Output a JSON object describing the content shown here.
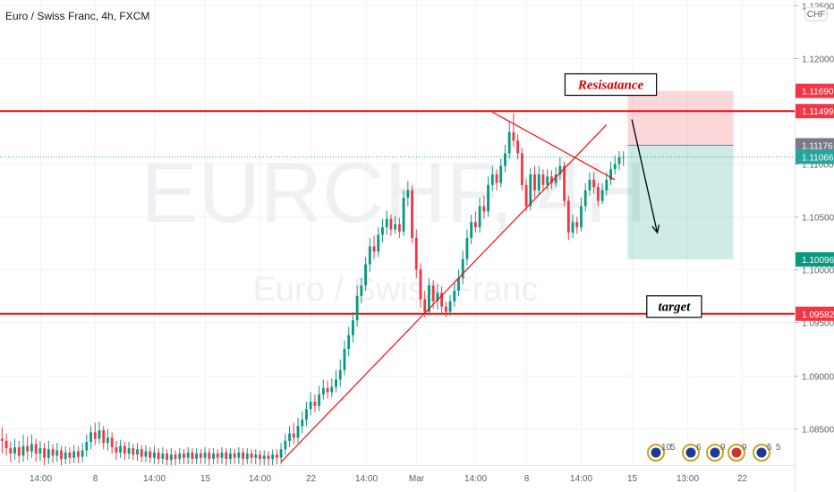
{
  "chart_data": {
    "type": "candlestick",
    "title": "Euro / Swiss Franc, 4h, FXCM",
    "watermark": {
      "symbol": "EURCHF, 4H",
      "name": "Euro / Swiss Franc"
    },
    "currency": "CHF",
    "ylim": [
      1.0815,
      1.1255
    ],
    "y_ticks": [
      "1.12500",
      "1.12000",
      "1.11500",
      "1.11000",
      "1.10500",
      "1.10000",
      "1.09500",
      "1.09000",
      "1.08500"
    ],
    "y_tick_values": [
      1.125,
      1.12,
      1.115,
      1.11,
      1.105,
      1.1,
      1.095,
      1.09,
      1.085
    ],
    "x_ticks": [
      "14:00",
      "8",
      "14:00",
      "15",
      "14:00",
      "22",
      "14:00",
      "Mar",
      "14:00",
      "8",
      "14:00",
      "15",
      "13:00",
      "22"
    ],
    "x_tick_bars": [
      9,
      22,
      36,
      48,
      61,
      73,
      86,
      98,
      112,
      124,
      137,
      149,
      162,
      175
    ],
    "bar_count": 188,
    "last_bar": 148,
    "price_labels": [
      {
        "text": "1.11690",
        "value": 1.1169,
        "color": "#f23645"
      },
      {
        "text": "1.11499",
        "value": 1.11499,
        "color": "#f23645"
      },
      {
        "text": "1.11176",
        "value": 1.11176,
        "color": "#787b86"
      },
      {
        "text": "1.11066",
        "value": 1.11066,
        "color": "#26a69a"
      },
      {
        "text": "1.10096",
        "value": 1.10096,
        "color": "#089981"
      },
      {
        "text": "1.09582",
        "value": 1.09582,
        "color": "#f23645"
      }
    ],
    "horizontal_lines": [
      {
        "value": 1.11499,
        "color": "#f20d0d"
      },
      {
        "value": 1.09582,
        "color": "#f20d0d"
      }
    ],
    "trend_lines": [
      {
        "from": [
          66,
          1.0818
        ],
        "to": [
          143,
          1.1137
        ],
        "color": "#f20d0d"
      },
      {
        "from": [
          116,
          1.1149
        ],
        "to": [
          145,
          1.1085
        ],
        "color": "#f20d0d"
      }
    ],
    "position_box": {
      "start_bar": 148,
      "end_bar": 173,
      "entry": 1.11176,
      "stop": 1.1169,
      "target": 1.10096
    },
    "arrow": {
      "from": [
        149,
        1.1142
      ],
      "to": [
        155,
        1.1035
      ]
    },
    "annotations": [
      {
        "text": "Resisatance",
        "bar": 144,
        "value": 1.1175,
        "color": "#d50000"
      },
      {
        "text": "target",
        "bar": 159,
        "value": 1.0965,
        "color": "#000000"
      }
    ],
    "event_badges": [
      "10",
      "5",
      "6",
      "9",
      "9",
      "5",
      "5"
    ],
    "candles": [
      [
        1.084,
        1.0838,
        1.0851,
        1.0826
      ],
      [
        1.0838,
        1.0831,
        1.0845,
        1.0824
      ],
      [
        1.0831,
        1.0826,
        1.0837,
        1.0818
      ],
      [
        1.0826,
        1.0832,
        1.084,
        1.082
      ],
      [
        1.0832,
        1.0824,
        1.0838,
        1.0817
      ],
      [
        1.0824,
        1.0833,
        1.0844,
        1.0818
      ],
      [
        1.0833,
        1.0828,
        1.0842,
        1.082
      ],
      [
        1.0828,
        1.0835,
        1.0844,
        1.0822
      ],
      [
        1.0835,
        1.0826,
        1.084,
        1.0818
      ],
      [
        1.0826,
        1.0831,
        1.0838,
        1.0819
      ],
      [
        1.0831,
        1.0822,
        1.0836,
        1.0815
      ],
      [
        1.0822,
        1.083,
        1.0838,
        1.0816
      ],
      [
        1.083,
        1.0824,
        1.0835,
        1.0817
      ],
      [
        1.0824,
        1.0829,
        1.0836,
        1.0818
      ],
      [
        1.0829,
        1.0821,
        1.0833,
        1.0815
      ],
      [
        1.0821,
        1.0827,
        1.0833,
        1.0816
      ],
      [
        1.0827,
        1.0822,
        1.0832,
        1.0816
      ],
      [
        1.0822,
        1.0828,
        1.0834,
        1.0817
      ],
      [
        1.0828,
        1.0823,
        1.0833,
        1.0817
      ],
      [
        1.0823,
        1.0829,
        1.0836,
        1.0818
      ],
      [
        1.0829,
        1.0837,
        1.0844,
        1.0823
      ],
      [
        1.0837,
        1.0846,
        1.0852,
        1.083
      ],
      [
        1.0846,
        1.084,
        1.0855,
        1.0834
      ],
      [
        1.084,
        1.0848,
        1.0856,
        1.0835
      ],
      [
        1.0848,
        1.0836,
        1.0852,
        1.083
      ],
      [
        1.0836,
        1.0841,
        1.0849,
        1.0829
      ],
      [
        1.0841,
        1.0832,
        1.0846,
        1.0826
      ],
      [
        1.0832,
        1.0827,
        1.0838,
        1.082
      ],
      [
        1.0827,
        1.0833,
        1.0839,
        1.0822
      ],
      [
        1.0833,
        1.0826,
        1.0837,
        1.082
      ],
      [
        1.0826,
        1.0831,
        1.0837,
        1.0821
      ],
      [
        1.0831,
        1.0825,
        1.0835,
        1.082
      ],
      [
        1.0825,
        1.083,
        1.0836,
        1.0819
      ],
      [
        1.083,
        1.0823,
        1.0834,
        1.0818
      ],
      [
        1.0823,
        1.0828,
        1.0834,
        1.0818
      ],
      [
        1.0828,
        1.0822,
        1.0832,
        1.0817
      ],
      [
        1.0822,
        1.0827,
        1.0833,
        1.0816
      ],
      [
        1.0827,
        1.0821,
        1.0831,
        1.0816
      ],
      [
        1.0821,
        1.0826,
        1.0832,
        1.0816
      ],
      [
        1.0826,
        1.082,
        1.083,
        1.0815
      ],
      [
        1.082,
        1.0825,
        1.0831,
        1.0815
      ],
      [
        1.0825,
        1.0821,
        1.0829,
        1.0815
      ],
      [
        1.0821,
        1.0826,
        1.0831,
        1.0816
      ],
      [
        1.0826,
        1.0822,
        1.083,
        1.0816
      ],
      [
        1.0822,
        1.0827,
        1.0832,
        1.0816
      ],
      [
        1.0827,
        1.0821,
        1.0831,
        1.0816
      ],
      [
        1.0821,
        1.0826,
        1.0831,
        1.0816
      ],
      [
        1.0826,
        1.0822,
        1.083,
        1.0816
      ],
      [
        1.0822,
        1.0827,
        1.0832,
        1.0816
      ],
      [
        1.0827,
        1.0821,
        1.0831,
        1.0815
      ],
      [
        1.0821,
        1.0826,
        1.0831,
        1.0816
      ],
      [
        1.0826,
        1.0822,
        1.083,
        1.0816
      ],
      [
        1.0822,
        1.0827,
        1.0832,
        1.0816
      ],
      [
        1.0827,
        1.0821,
        1.0831,
        1.0815
      ],
      [
        1.0821,
        1.0826,
        1.0831,
        1.0816
      ],
      [
        1.0826,
        1.0822,
        1.083,
        1.0816
      ],
      [
        1.0822,
        1.0827,
        1.0832,
        1.0816
      ],
      [
        1.0827,
        1.0821,
        1.0831,
        1.0815
      ],
      [
        1.0821,
        1.0826,
        1.0831,
        1.0816
      ],
      [
        1.0826,
        1.0822,
        1.083,
        1.0816
      ],
      [
        1.0822,
        1.0825,
        1.083,
        1.0816
      ],
      [
        1.0825,
        1.0821,
        1.0829,
        1.0815
      ],
      [
        1.0821,
        1.0824,
        1.0829,
        1.0815
      ],
      [
        1.0824,
        1.0821,
        1.0828,
        1.0815
      ],
      [
        1.0821,
        1.0825,
        1.083,
        1.0815
      ],
      [
        1.0825,
        1.0822,
        1.083,
        1.0816
      ],
      [
        1.0822,
        1.083,
        1.0836,
        1.0816
      ],
      [
        1.083,
        1.0838,
        1.0845,
        1.0825
      ],
      [
        1.0838,
        1.0845,
        1.0852,
        1.0832
      ],
      [
        1.0845,
        1.0841,
        1.0855,
        1.0835
      ],
      [
        1.0841,
        1.0852,
        1.086,
        1.0836
      ],
      [
        1.0852,
        1.0858,
        1.0866,
        1.0845
      ],
      [
        1.0858,
        1.0868,
        1.0875,
        1.0852
      ],
      [
        1.0868,
        1.0875,
        1.0884,
        1.0862
      ],
      [
        1.0875,
        1.0871,
        1.0882,
        1.0865
      ],
      [
        1.0871,
        1.0882,
        1.089,
        1.0866
      ],
      [
        1.0882,
        1.0888,
        1.0896,
        1.0877
      ],
      [
        1.0888,
        1.0884,
        1.0895,
        1.0878
      ],
      [
        1.0884,
        1.0889,
        1.0897,
        1.0879
      ],
      [
        1.0889,
        1.0896,
        1.0905,
        1.0884
      ],
      [
        1.0896,
        1.0905,
        1.0915,
        1.0889
      ],
      [
        1.0905,
        1.0925,
        1.0933,
        1.09
      ],
      [
        1.0925,
        1.0938,
        1.0946,
        1.0918
      ],
      [
        1.0938,
        1.0952,
        1.096,
        1.0931
      ],
      [
        1.0952,
        1.0975,
        1.0985,
        1.0946
      ],
      [
        1.0975,
        1.0985,
        1.0992,
        1.0968
      ],
      [
        1.0985,
        1.1005,
        1.1012,
        1.098
      ],
      [
        1.1005,
        1.1022,
        1.103,
        1.0998
      ],
      [
        1.1022,
        1.1017,
        1.1032,
        1.101
      ],
      [
        1.1017,
        1.1033,
        1.104,
        1.1012
      ],
      [
        1.1033,
        1.104,
        1.1048,
        1.1026
      ],
      [
        1.104,
        1.1048,
        1.1056,
        1.1033
      ],
      [
        1.1048,
        1.1038,
        1.1052,
        1.1032
      ],
      [
        1.1038,
        1.1043,
        1.1051,
        1.1034
      ],
      [
        1.1043,
        1.1036,
        1.1049,
        1.103
      ],
      [
        1.1036,
        1.1068,
        1.1075,
        1.1032
      ],
      [
        1.1068,
        1.1075,
        1.1084,
        1.106
      ],
      [
        1.1075,
        1.103,
        1.108,
        1.1025
      ],
      [
        1.103,
        1.1,
        1.1038,
        1.0992
      ],
      [
        1.1,
        1.0972,
        1.1006,
        1.0964
      ],
      [
        1.0972,
        1.096,
        1.098,
        1.0955
      ],
      [
        1.096,
        1.0985,
        1.0992,
        1.0956
      ],
      [
        1.0985,
        1.097,
        1.099,
        1.0963
      ],
      [
        1.097,
        1.0978,
        1.0986,
        1.0962
      ],
      [
        1.0978,
        1.0965,
        1.0984,
        1.0958
      ],
      [
        1.0965,
        1.096,
        1.097,
        1.0955
      ],
      [
        1.096,
        1.097,
        1.0976,
        1.0956
      ],
      [
        1.097,
        1.098,
        1.0988,
        1.0965
      ],
      [
        1.098,
        1.0992,
        1.1,
        1.0975
      ],
      [
        1.0992,
        1.101,
        1.1018,
        1.0986
      ],
      [
        1.101,
        1.103,
        1.1038,
        1.1004
      ],
      [
        1.103,
        1.1045,
        1.1052,
        1.1024
      ],
      [
        1.1045,
        1.104,
        1.1055,
        1.1035
      ],
      [
        1.104,
        1.106,
        1.1068,
        1.1035
      ],
      [
        1.106,
        1.1055,
        1.107,
        1.1048
      ],
      [
        1.1055,
        1.108,
        1.1088,
        1.105
      ],
      [
        1.108,
        1.109,
        1.1098,
        1.1074
      ],
      [
        1.109,
        1.1082,
        1.1095,
        1.1075
      ],
      [
        1.1082,
        1.1098,
        1.1105,
        1.1078
      ],
      [
        1.1098,
        1.111,
        1.1118,
        1.1092
      ],
      [
        1.111,
        1.113,
        1.114,
        1.1105
      ],
      [
        1.113,
        1.1122,
        1.1148,
        1.1116
      ],
      [
        1.1122,
        1.111,
        1.1128,
        1.1104
      ],
      [
        1.111,
        1.108,
        1.1115,
        1.1075
      ],
      [
        1.108,
        1.106,
        1.1086,
        1.1055
      ],
      [
        1.106,
        1.109,
        1.1096,
        1.1056
      ],
      [
        1.109,
        1.1075,
        1.1098,
        1.1068
      ],
      [
        1.1075,
        1.109,
        1.1098,
        1.107
      ],
      [
        1.109,
        1.108,
        1.1095,
        1.1074
      ],
      [
        1.108,
        1.1088,
        1.1095,
        1.1075
      ],
      [
        1.1088,
        1.1082,
        1.1094,
        1.1076
      ],
      [
        1.1082,
        1.109,
        1.1097,
        1.1078
      ],
      [
        1.109,
        1.1098,
        1.1106,
        1.1085
      ],
      [
        1.1098,
        1.1065,
        1.1102,
        1.106
      ],
      [
        1.1065,
        1.1035,
        1.107,
        1.1028
      ],
      [
        1.1035,
        1.1045,
        1.1052,
        1.103
      ],
      [
        1.1045,
        1.104,
        1.105,
        1.1034
      ],
      [
        1.104,
        1.106,
        1.1068,
        1.1036
      ],
      [
        1.106,
        1.1075,
        1.1082,
        1.1055
      ],
      [
        1.1075,
        1.1085,
        1.1092,
        1.107
      ],
      [
        1.1085,
        1.1078,
        1.1092,
        1.1072
      ],
      [
        1.1078,
        1.1065,
        1.1082,
        1.106
      ],
      [
        1.1065,
        1.1075,
        1.1082,
        1.1062
      ],
      [
        1.1075,
        1.1085,
        1.1092,
        1.107
      ],
      [
        1.1085,
        1.1095,
        1.1102,
        1.108
      ],
      [
        1.1095,
        1.11,
        1.1108,
        1.109
      ],
      [
        1.11,
        1.1106,
        1.1112,
        1.1094
      ],
      [
        1.1106,
        1.11066,
        1.1112,
        1.1098
      ]
    ]
  }
}
